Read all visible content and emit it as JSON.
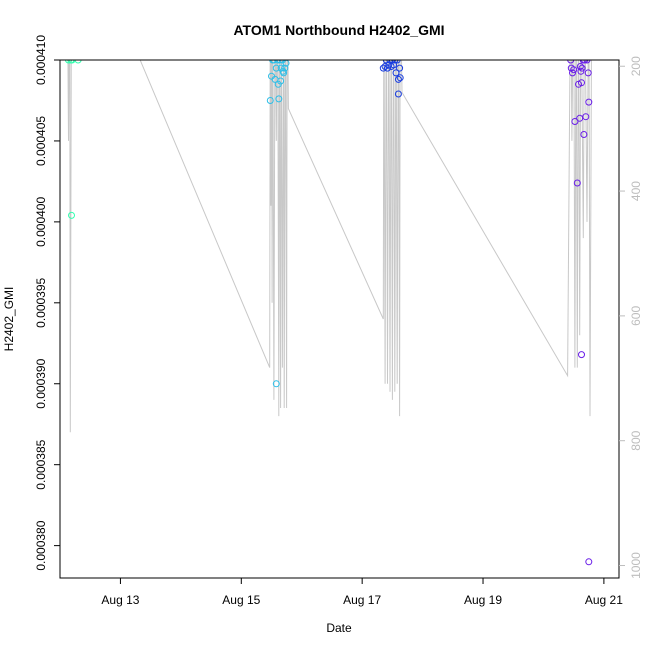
{
  "chart_data": {
    "type": "scatter",
    "title": "ATOM1 Northbound H2402_GMI",
    "xlabel": "Date",
    "ylabel": "H2402_GMI",
    "x_ticks": [
      {
        "label": "Aug 13",
        "day": 13
      },
      {
        "label": "Aug 15",
        "day": 15
      },
      {
        "label": "Aug 17",
        "day": 17
      },
      {
        "label": "Aug 19",
        "day": 19
      },
      {
        "label": "Aug 21",
        "day": 21
      }
    ],
    "xlim_days": [
      12.0,
      21.25
    ],
    "ylim": [
      0.000378,
      0.00041
    ],
    "y_ticks": [
      "0.000380",
      "0.000385",
      "0.000390",
      "0.000395",
      "0.000400",
      "0.000405",
      "0.000410"
    ],
    "y_tick_values": [
      0.00038,
      0.000385,
      0.00039,
      0.000395,
      0.0004,
      0.000405,
      0.00041
    ],
    "secondary_ylim": [
      1020,
      190
    ],
    "secondary_y_ticks": [
      "200",
      "400",
      "600",
      "800",
      "1000"
    ],
    "secondary_y_tick_values": [
      200,
      400,
      600,
      800,
      1000
    ],
    "colors": {
      "line": "#c8c8c8",
      "axis": "#000000",
      "secondary_axis": "#bdbdbd",
      "series": [
        "#33ffb0",
        "#2dbfe8",
        "#1a3ee0",
        "#6a1ee8"
      ]
    },
    "series": [
      {
        "color": "#33ffb0",
        "points": [
          [
            12.14,
            0.00041
          ],
          [
            12.18,
            0.00041
          ],
          [
            12.2,
            0.00041
          ],
          [
            12.3,
            0.00041
          ],
          [
            12.19,
            0.0004004
          ]
        ]
      },
      {
        "color": "#2dbfe8",
        "points": [
          [
            15.48,
            0.0004075
          ],
          [
            15.5,
            0.000409
          ],
          [
            15.52,
            0.00041
          ],
          [
            15.54,
            0.00041
          ],
          [
            15.56,
            0.0004088
          ],
          [
            15.58,
            0.0004095
          ],
          [
            15.6,
            0.00041
          ],
          [
            15.61,
            0.0004085
          ],
          [
            15.62,
            0.0004076
          ],
          [
            15.64,
            0.00041
          ],
          [
            15.65,
            0.0004087
          ],
          [
            15.66,
            0.0004095
          ],
          [
            15.68,
            0.00041
          ],
          [
            15.69,
            0.0004093
          ],
          [
            15.7,
            0.0004092
          ],
          [
            15.72,
            0.0004095
          ],
          [
            15.74,
            0.0004098
          ],
          [
            15.58,
            0.00039
          ]
        ]
      },
      {
        "color": "#1a3ee0",
        "points": [
          [
            17.35,
            0.0004095
          ],
          [
            17.38,
            0.0004096
          ],
          [
            17.4,
            0.00041
          ],
          [
            17.42,
            0.0004095
          ],
          [
            17.44,
            0.0004097
          ],
          [
            17.46,
            0.00041
          ],
          [
            17.48,
            0.0004096
          ],
          [
            17.5,
            0.00041
          ],
          [
            17.52,
            0.0004097
          ],
          [
            17.54,
            0.00041
          ],
          [
            17.56,
            0.0004092
          ],
          [
            17.58,
            0.00041
          ],
          [
            17.6,
            0.0004088
          ],
          [
            17.62,
            0.0004095
          ],
          [
            17.6,
            0.0004079
          ],
          [
            17.63,
            0.0004089
          ]
        ]
      },
      {
        "color": "#6a1ee8",
        "points": [
          [
            20.45,
            0.00041
          ],
          [
            20.46,
            0.0004095
          ],
          [
            20.48,
            0.0004092
          ],
          [
            20.5,
            0.0004094
          ],
          [
            20.52,
            0.0004062
          ],
          [
            20.56,
            0.0004024
          ],
          [
            20.58,
            0.0004085
          ],
          [
            20.6,
            0.0004064
          ],
          [
            20.61,
            0.0004096
          ],
          [
            20.62,
            0.0004093
          ],
          [
            20.63,
            0.0004086
          ],
          [
            20.64,
            0.0004095
          ],
          [
            20.66,
            0.00041
          ],
          [
            20.67,
            0.0004054
          ],
          [
            20.68,
            0.00041
          ],
          [
            20.7,
            0.0004065
          ],
          [
            20.72,
            0.00041
          ],
          [
            20.74,
            0.0004092
          ],
          [
            20.75,
            0.0004074
          ],
          [
            20.63,
            0.0003918
          ],
          [
            20.75,
            0.000379
          ]
        ]
      }
    ],
    "line_series": {
      "color": "#c8c8c8",
      "points": [
        [
          12.12,
          0.000416
        ],
        [
          12.14,
          0.000405
        ],
        [
          12.16,
          0.000416
        ],
        [
          12.17,
          0.000387
        ],
        [
          12.19,
          0.000416
        ],
        [
          12.22,
          0.000412
        ],
        [
          12.24,
          0.000416
        ],
        [
          12.28,
          0.000412
        ],
        [
          12.3,
          0.000416
        ],
        [
          13.1,
          0.000412
        ],
        [
          15.47,
          0.000391
        ],
        [
          15.48,
          0.000416
        ],
        [
          15.49,
          0.000401
        ],
        [
          15.5,
          0.000416
        ],
        [
          15.51,
          0.000395
        ],
        [
          15.52,
          0.000416
        ],
        [
          15.54,
          0.000389
        ],
        [
          15.56,
          0.000416
        ],
        [
          15.58,
          0.000405
        ],
        [
          15.6,
          0.000416
        ],
        [
          15.62,
          0.000388
        ],
        [
          15.63,
          0.000416
        ],
        [
          15.65,
          0.0003885
        ],
        [
          15.66,
          0.000416
        ],
        [
          15.68,
          0.000391
        ],
        [
          15.7,
          0.000416
        ],
        [
          15.71,
          0.0003885
        ],
        [
          15.73,
          0.000416
        ],
        [
          15.75,
          0.0003885
        ],
        [
          15.76,
          0.000416
        ],
        [
          15.78,
          0.000407
        ],
        [
          17.35,
          0.000394
        ],
        [
          17.36,
          0.000416
        ],
        [
          17.38,
          0.00039
        ],
        [
          17.4,
          0.000416
        ],
        [
          17.42,
          0.00039
        ],
        [
          17.44,
          0.000416
        ],
        [
          17.46,
          0.0003895
        ],
        [
          17.48,
          0.000416
        ],
        [
          17.5,
          0.000389
        ],
        [
          17.52,
          0.000416
        ],
        [
          17.54,
          0.0003895
        ],
        [
          17.56,
          0.000416
        ],
        [
          17.58,
          0.00039
        ],
        [
          17.6,
          0.000416
        ],
        [
          17.62,
          0.000388
        ],
        [
          17.63,
          0.000416
        ],
        [
          17.66,
          0.000408
        ],
        [
          20.4,
          0.0003905
        ],
        [
          20.45,
          0.000416
        ],
        [
          20.47,
          0.000405
        ],
        [
          20.5,
          0.000416
        ],
        [
          20.52,
          0.000391
        ],
        [
          20.54,
          0.000416
        ],
        [
          20.56,
          0.000391
        ],
        [
          20.58,
          0.000416
        ],
        [
          20.6,
          0.000393
        ],
        [
          20.62,
          0.000416
        ],
        [
          20.66,
          0.000399
        ],
        [
          20.68,
          0.000416
        ],
        [
          20.72,
          0.0004
        ],
        [
          20.75,
          0.000416
        ],
        [
          20.77,
          0.000388
        ],
        [
          20.8,
          0.000416
        ]
      ]
    }
  }
}
